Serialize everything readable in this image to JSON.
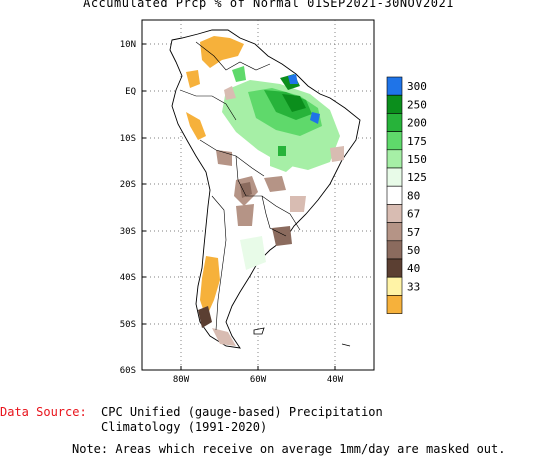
{
  "title": "Accumulated Prcp % of Normal 01SEP2021-30NOV2021",
  "colors": {
    "c300": "#1f74e8",
    "c250": "#0b8e1c",
    "c200": "#27b33a",
    "c175": "#5fd96b",
    "c150": "#a6efa6",
    "c125": "#e8fbe8",
    "c80": "#ffffff",
    "c67": "#d8bcb2",
    "c57": "#b59486",
    "c50": "#8b6b5e",
    "c40": "#5b3f32",
    "c33": "#fff3a6",
    "clow": "#f6b13b",
    "land_outline": "#000000",
    "grid": "#555555"
  },
  "map": {
    "lat_labels": [
      "10N",
      "EQ",
      "10S",
      "20S",
      "30S",
      "40S",
      "50S",
      "60S"
    ],
    "lon_labels": [
      "80W",
      "60W",
      "40W"
    ]
  },
  "legend": {
    "labels": [
      "300",
      "250",
      "200",
      "175",
      "150",
      "125",
      "80",
      "67",
      "57",
      "50",
      "40",
      "33"
    ]
  },
  "footer": {
    "source_label": "Data Source:",
    "source_line1": "CPC Unified (gauge-based) Precipitation",
    "source_line2": "Climatology (1991-2020)",
    "note": "Note: Areas which receive on average 1mm/day are masked out."
  }
}
